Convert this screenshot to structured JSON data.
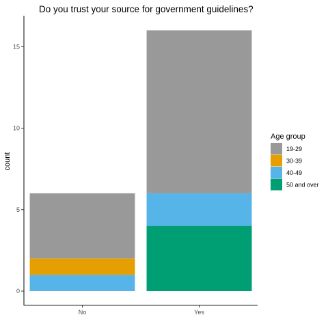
{
  "chart_data": {
    "type": "bar",
    "stacked": true,
    "title": "Do you trust your source for government guidelines?",
    "xlabel": "",
    "ylabel": "count",
    "categories": [
      "No",
      "Yes"
    ],
    "series": [
      {
        "name": "19-29",
        "values": [
          4,
          10
        ],
        "color": "#999999"
      },
      {
        "name": "30-39",
        "values": [
          1,
          0
        ],
        "color": "#E69F00"
      },
      {
        "name": "40-49",
        "values": [
          1,
          2
        ],
        "color": "#56B4E9"
      },
      {
        "name": "50 and over",
        "values": [
          0,
          4
        ],
        "color": "#009E73"
      }
    ],
    "ylim": [
      0,
      16.8
    ],
    "yticks": [
      0,
      5,
      10,
      15
    ],
    "grid": false,
    "legend": {
      "title": "Age group",
      "position": "right"
    }
  }
}
